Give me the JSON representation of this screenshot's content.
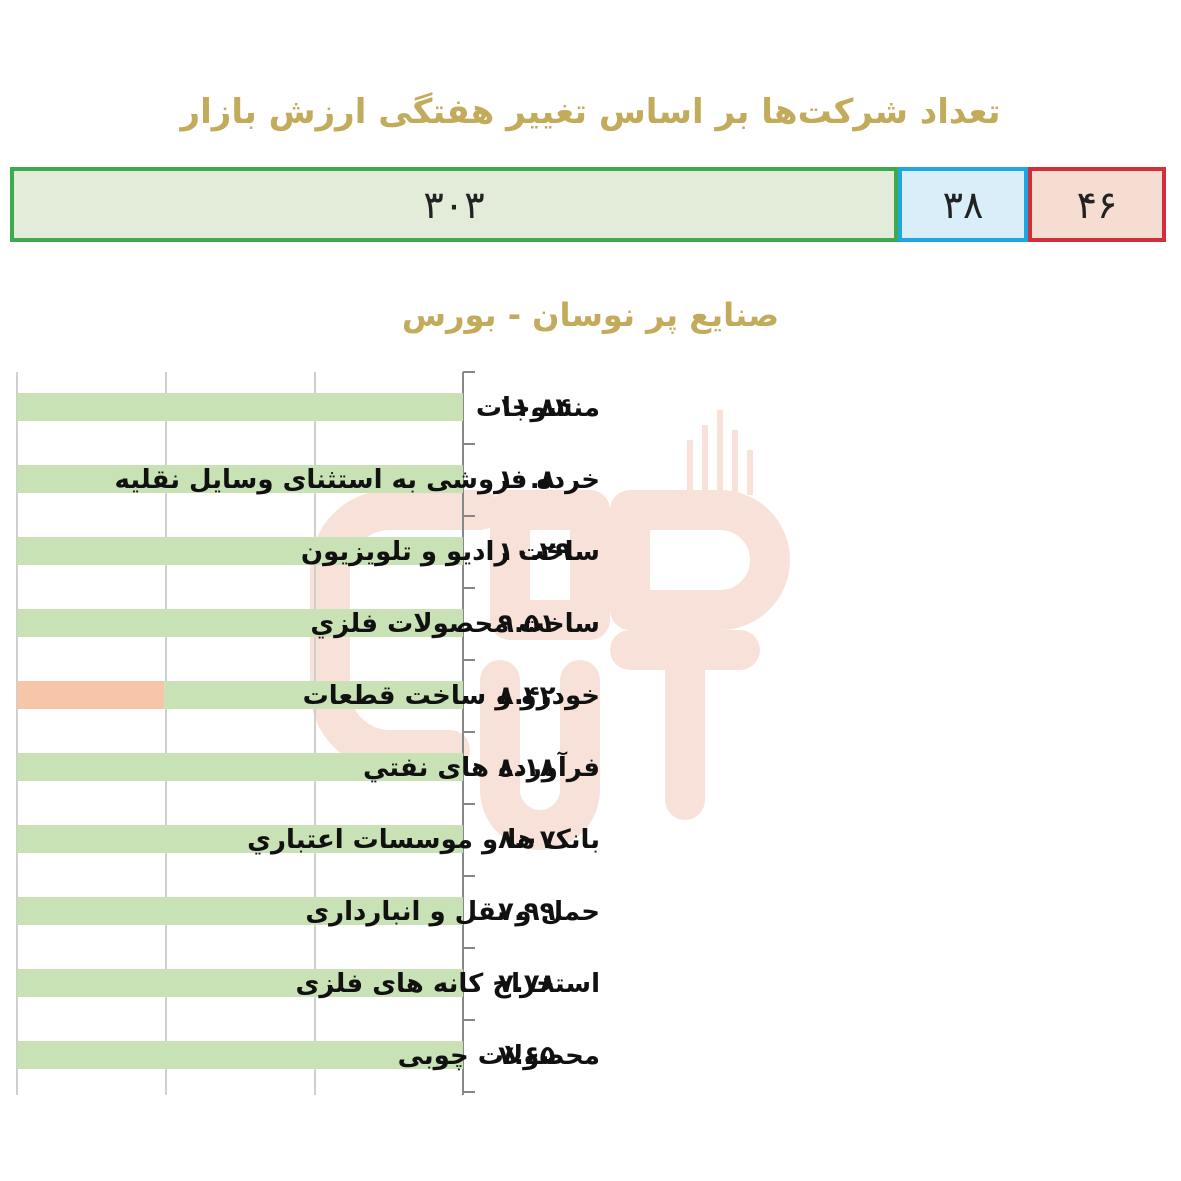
{
  "header": {
    "title": "تعداد شرکت‌ها بر اساس تغییر هفتگی ارزش بازار"
  },
  "counts": {
    "positive": "۳۰۳",
    "unchanged": "۳۸",
    "negative": "۴۶",
    "positive_value": 303,
    "unchanged_value": 38,
    "negative_value": 46,
    "colors": {
      "positive": "#3fa94e",
      "unchanged": "#1ea7e1",
      "negative": "#d32f3a"
    }
  },
  "chart_data": {
    "type": "bar",
    "orientation": "horizontal",
    "title": "صنایع پر نوسان - بورس",
    "categories": [
      "منسوجات",
      "خرده فروشی به استثنای وسایل نقلیه",
      "ساخت رادیو و تلویزیون",
      "ساخت محصولات فلزي",
      "خودرو و ساخت قطعات",
      "فرآورده های نفتي",
      "بانک ها و موسسات اعتباري",
      "حمل و نقل و انبارداری",
      "استخراج کانه های فلزی",
      "محصولات چوبی"
    ],
    "value_labels": [
      "۱۱.۸۴",
      "۱۰.۸",
      "۱۰.۲۹",
      "۹.۵۱",
      "۸.۴۲",
      "۸.۱۸",
      "۸.۰۷",
      "۷.۹۹",
      "۷.۷۸",
      "۷.۶۵"
    ],
    "values": [
      11.84,
      10.8,
      10.29,
      9.51,
      8.42,
      8.18,
      8.07,
      7.99,
      7.78,
      7.65
    ],
    "bar_fraction": [
      1,
      1,
      1,
      1,
      0.67,
      1,
      1,
      1,
      1,
      1
    ],
    "bar_colors": [
      "#c9e2b5",
      "#c9e2b5",
      "#c9e2b5",
      "#c9e2b5",
      "#c9e2b5",
      "#c9e2b5",
      "#c9e2b5",
      "#c9e2b5",
      "#c9e2b5",
      "#c9e2b5"
    ],
    "highlight_color": "#f7c6a8",
    "grid": true
  }
}
